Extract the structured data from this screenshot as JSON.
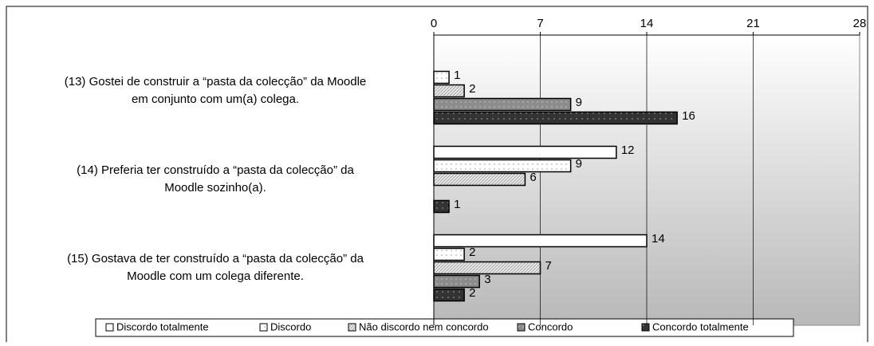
{
  "chart_data": {
    "type": "bar",
    "orientation": "horizontal",
    "categories": [
      [
        "(13)  Gostei de construir a “pasta da colecção” da Moodle",
        "em conjunto com um(a) colega."
      ],
      [
        "(14)  Preferia ter construído a “pasta da colecção” da",
        "Moodle sozinho(a)."
      ],
      [
        "(15)  Gostava de ter construído a “pasta da colecção” da",
        "Moodle com um colega diferente."
      ]
    ],
    "series": [
      {
        "name": "Discordo totalmente",
        "color": "#ffffff",
        "values": [
          null,
          12,
          14
        ]
      },
      {
        "name": "Discordo",
        "color": "#f4f4f4",
        "values": [
          1,
          9,
          2
        ]
      },
      {
        "name": "Não discordo nem concordo",
        "color": "#d8d8d8",
        "values": [
          2,
          6,
          7
        ]
      },
      {
        "name": "Concordo",
        "color": "#8c8c8c",
        "values": [
          9,
          null,
          3
        ]
      },
      {
        "name": "Concordo totalmente",
        "color": "#333333",
        "values": [
          16,
          1,
          2
        ]
      }
    ],
    "xlim": [
      0,
      28
    ],
    "xticks": [
      0,
      7,
      14,
      21,
      28
    ],
    "grid": true,
    "legend": "bottom"
  }
}
